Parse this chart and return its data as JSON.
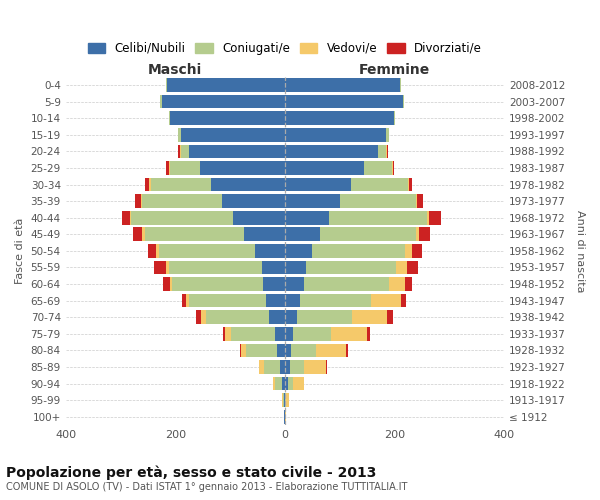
{
  "age_groups": [
    "0-4",
    "5-9",
    "10-14",
    "15-19",
    "20-24",
    "25-29",
    "30-34",
    "35-39",
    "40-44",
    "45-49",
    "50-54",
    "55-59",
    "60-64",
    "65-69",
    "70-74",
    "75-79",
    "80-84",
    "85-89",
    "90-94",
    "95-99",
    "100+"
  ],
  "birth_years": [
    "2008-2012",
    "2003-2007",
    "1998-2002",
    "1993-1997",
    "1988-1992",
    "1983-1987",
    "1978-1982",
    "1973-1977",
    "1968-1972",
    "1963-1967",
    "1958-1962",
    "1953-1957",
    "1948-1952",
    "1943-1947",
    "1938-1942",
    "1933-1937",
    "1928-1932",
    "1923-1927",
    "1918-1922",
    "1913-1917",
    "≤ 1912"
  ],
  "males": {
    "celibi": [
      215,
      225,
      210,
      190,
      175,
      155,
      135,
      115,
      95,
      75,
      55,
      42,
      40,
      35,
      28,
      18,
      15,
      8,
      5,
      1,
      1
    ],
    "coniugati": [
      2,
      2,
      2,
      5,
      15,
      55,
      110,
      145,
      185,
      180,
      175,
      170,
      165,
      140,
      115,
      80,
      55,
      30,
      12,
      2,
      0
    ],
    "vedovi": [
      0,
      0,
      0,
      0,
      2,
      2,
      2,
      2,
      2,
      5,
      5,
      5,
      5,
      5,
      10,
      12,
      10,
      10,
      5,
      2,
      0
    ],
    "divorziati": [
      0,
      0,
      0,
      0,
      3,
      5,
      8,
      12,
      15,
      18,
      15,
      22,
      12,
      8,
      10,
      3,
      2,
      0,
      0,
      0,
      0
    ]
  },
  "females": {
    "nubili": [
      210,
      215,
      200,
      185,
      170,
      145,
      120,
      100,
      80,
      65,
      50,
      38,
      35,
      28,
      22,
      15,
      12,
      10,
      5,
      1,
      1
    ],
    "coniugate": [
      2,
      2,
      2,
      5,
      15,
      50,
      105,
      140,
      180,
      175,
      170,
      165,
      155,
      130,
      100,
      70,
      45,
      25,
      10,
      2,
      0
    ],
    "vedove": [
      0,
      0,
      0,
      0,
      2,
      2,
      2,
      2,
      3,
      5,
      12,
      20,
      30,
      55,
      65,
      65,
      55,
      40,
      20,
      5,
      1
    ],
    "divorziate": [
      0,
      0,
      0,
      0,
      2,
      2,
      5,
      10,
      22,
      20,
      18,
      20,
      12,
      8,
      10,
      5,
      3,
      2,
      0,
      0,
      0
    ]
  },
  "colors": {
    "celibi": "#3d6fa8",
    "coniugati": "#b5cc8e",
    "vedovi": "#f5c96a",
    "divorziati": "#cc2222"
  },
  "xlim": 400,
  "title": "Popolazione per età, sesso e stato civile - 2013",
  "subtitle": "COMUNE DI ASOLO (TV) - Dati ISTAT 1° gennaio 2013 - Elaborazione TUTTITALIA.IT",
  "ylabel_left": "Fasce di età",
  "ylabel_right": "Anni di nascita",
  "xlabel_left": "Maschi",
  "xlabel_right": "Femmine",
  "legend_labels": [
    "Celibi/Nubili",
    "Coniugati/e",
    "Vedovi/e",
    "Divorziati/e"
  ],
  "background_color": "#ffffff"
}
